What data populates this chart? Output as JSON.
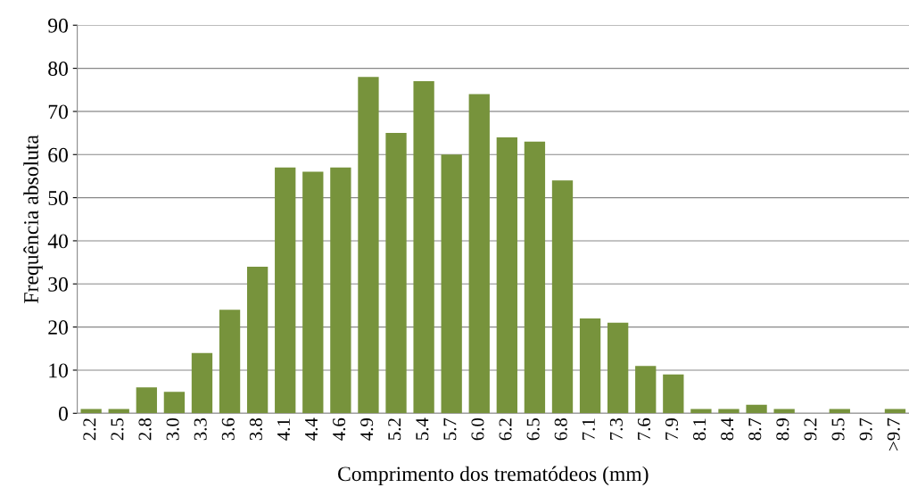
{
  "chart_data": {
    "type": "bar",
    "xlabel": "Comprimento dos trematódeos (mm)",
    "ylabel": "Frequência absoluta",
    "categories": [
      "2.2",
      "2.5",
      "2.8",
      "3.0",
      "3.3",
      "3.6",
      "3.8",
      "4.1",
      "4.4",
      "4.6",
      "4.9",
      "5.2",
      "5.4",
      "5.7",
      "6.0",
      "6.2",
      "6.5",
      "6.8",
      "7.1",
      "7.3",
      "7.6",
      "7.9",
      "8.1",
      "8.4",
      "8.7",
      "8.9",
      "9.2",
      "9.5",
      "9.7",
      ">9.7"
    ],
    "values": [
      1,
      1,
      6,
      5,
      14,
      24,
      34,
      57,
      56,
      57,
      78,
      65,
      77,
      60,
      74,
      64,
      63,
      54,
      22,
      21,
      11,
      9,
      1,
      1,
      2,
      1,
      0,
      1,
      0,
      1
    ],
    "color": "#77933c",
    "ylim": [
      0,
      90
    ],
    "yticks": [
      0,
      10,
      20,
      30,
      40,
      50,
      60,
      70,
      80,
      90
    ],
    "grid": "y",
    "legend": false
  }
}
